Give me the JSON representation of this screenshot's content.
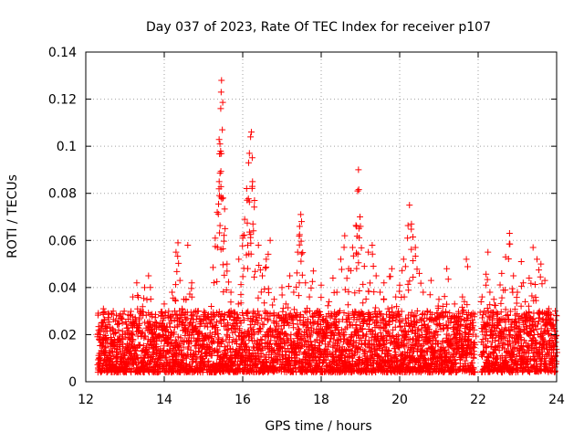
{
  "chart_data": {
    "type": "scatter",
    "title": "Day 037 of 2023, Rate Of TEC Index for receiver p107",
    "xlabel": "GPS time / hours",
    "ylabel": "ROTI / TECUs",
    "xlim": [
      12,
      24
    ],
    "ylim": [
      0,
      0.14
    ],
    "x_ticks": [
      12,
      14,
      16,
      18,
      20,
      22,
      24
    ],
    "x_tick_labels": [
      "12",
      "14",
      "16",
      "18",
      "20",
      "22",
      "24"
    ],
    "y_ticks": [
      0,
      0.02,
      0.04,
      0.06,
      0.08,
      0.1,
      0.12,
      0.14
    ],
    "y_tick_labels": [
      "0",
      "0.02",
      "0.04",
      "0.06",
      "0.08",
      "0.1",
      "0.12",
      "0.14"
    ],
    "grid": true,
    "marker": "+",
    "series": [
      {
        "name": "ROTI",
        "color": "#ff0000",
        "points": [
          [
            12.35,
            0.012
          ],
          [
            12.4,
            0.025
          ],
          [
            12.45,
            0.031
          ],
          [
            12.5,
            0.018
          ],
          [
            12.6,
            0.009
          ],
          [
            12.7,
            0.022
          ],
          [
            12.8,
            0.015
          ],
          [
            12.9,
            0.027
          ],
          [
            13.0,
            0.011
          ],
          [
            13.1,
            0.02
          ],
          [
            13.2,
            0.036
          ],
          [
            13.3,
            0.042
          ],
          [
            13.4,
            0.03
          ],
          [
            13.5,
            0.04
          ],
          [
            13.6,
            0.045
          ],
          [
            13.7,
            0.018
          ],
          [
            13.8,
            0.025
          ],
          [
            13.9,
            0.014
          ],
          [
            14.0,
            0.033
          ],
          [
            14.1,
            0.028
          ],
          [
            14.2,
            0.038
          ],
          [
            14.3,
            0.055
          ],
          [
            14.35,
            0.059
          ],
          [
            14.4,
            0.043
          ],
          [
            14.5,
            0.035
          ],
          [
            14.6,
            0.058
          ],
          [
            14.7,
            0.042
          ],
          [
            14.8,
            0.03
          ],
          [
            14.9,
            0.021
          ],
          [
            15.0,
            0.026
          ],
          [
            15.1,
            0.019
          ],
          [
            15.2,
            0.032
          ],
          [
            15.3,
            0.061
          ],
          [
            15.35,
            0.072
          ],
          [
            15.4,
            0.085
          ],
          [
            15.42,
            0.101
          ],
          [
            15.44,
            0.116
          ],
          [
            15.45,
            0.123
          ],
          [
            15.46,
            0.128
          ],
          [
            15.48,
            0.107
          ],
          [
            15.5,
            0.078
          ],
          [
            15.55,
            0.065
          ],
          [
            15.6,
            0.05
          ],
          [
            15.7,
            0.038
          ],
          [
            15.8,
            0.029
          ],
          [
            15.9,
            0.052
          ],
          [
            16.0,
            0.061
          ],
          [
            16.05,
            0.069
          ],
          [
            16.1,
            0.082
          ],
          [
            16.15,
            0.093
          ],
          [
            16.17,
            0.097
          ],
          [
            16.2,
            0.104
          ],
          [
            16.22,
            0.106
          ],
          [
            16.25,
            0.085
          ],
          [
            16.3,
            0.077
          ],
          [
            16.4,
            0.058
          ],
          [
            16.5,
            0.045
          ],
          [
            16.6,
            0.052
          ],
          [
            16.7,
            0.06
          ],
          [
            16.8,
            0.035
          ],
          [
            16.9,
            0.028
          ],
          [
            17.0,
            0.04
          ],
          [
            17.1,
            0.033
          ],
          [
            17.2,
            0.045
          ],
          [
            17.3,
            0.038
          ],
          [
            17.4,
            0.055
          ],
          [
            17.45,
            0.066
          ],
          [
            17.48,
            0.071
          ],
          [
            17.5,
            0.068
          ],
          [
            17.6,
            0.042
          ],
          [
            17.7,
            0.036
          ],
          [
            17.8,
            0.047
          ],
          [
            17.9,
            0.03
          ],
          [
            18.0,
            0.041
          ],
          [
            18.1,
            0.026
          ],
          [
            18.2,
            0.034
          ],
          [
            18.3,
            0.044
          ],
          [
            18.4,
            0.038
          ],
          [
            18.5,
            0.052
          ],
          [
            18.6,
            0.062
          ],
          [
            18.7,
            0.048
          ],
          [
            18.8,
            0.057
          ],
          [
            18.9,
            0.066
          ],
          [
            18.93,
            0.081
          ],
          [
            18.95,
            0.09
          ],
          [
            19.0,
            0.066
          ],
          [
            19.1,
            0.049
          ],
          [
            19.2,
            0.055
          ],
          [
            19.3,
            0.058
          ],
          [
            19.4,
            0.045
          ],
          [
            19.5,
            0.038
          ],
          [
            19.6,
            0.042
          ],
          [
            19.7,
            0.031
          ],
          [
            19.8,
            0.048
          ],
          [
            19.9,
            0.036
          ],
          [
            20.0,
            0.041
          ],
          [
            20.1,
            0.052
          ],
          [
            20.2,
            0.061
          ],
          [
            20.25,
            0.075
          ],
          [
            20.3,
            0.067
          ],
          [
            20.4,
            0.057
          ],
          [
            20.5,
            0.046
          ],
          [
            20.6,
            0.038
          ],
          [
            20.7,
            0.03
          ],
          [
            20.8,
            0.043
          ],
          [
            20.9,
            0.027
          ],
          [
            21.0,
            0.035
          ],
          [
            21.1,
            0.032
          ],
          [
            21.2,
            0.048
          ],
          [
            21.3,
            0.025
          ],
          [
            21.4,
            0.033
          ],
          [
            21.5,
            0.029
          ],
          [
            21.6,
            0.036
          ],
          [
            21.7,
            0.052
          ],
          [
            21.8,
            0.028
          ],
          [
            21.9,
            0.022
          ],
          [
            22.1,
            0.036
          ],
          [
            22.2,
            0.041
          ],
          [
            22.25,
            0.055
          ],
          [
            22.3,
            0.038
          ],
          [
            22.4,
            0.035
          ],
          [
            22.5,
            0.029
          ],
          [
            22.6,
            0.046
          ],
          [
            22.7,
            0.053
          ],
          [
            22.8,
            0.063
          ],
          [
            22.9,
            0.045
          ],
          [
            23.0,
            0.038
          ],
          [
            23.1,
            0.051
          ],
          [
            23.2,
            0.034
          ],
          [
            23.3,
            0.044
          ],
          [
            23.4,
            0.057
          ],
          [
            23.5,
            0.052
          ],
          [
            23.6,
            0.05
          ],
          [
            23.7,
            0.043
          ],
          [
            23.8,
            0.031
          ],
          [
            23.9,
            0.024
          ],
          [
            23.95,
            0.019
          ]
        ],
        "baseline_band": {
          "description": "dense cluster of points throughout the observation window",
          "x_range": [
            12.3,
            24.0
          ],
          "gap": [
            21.92,
            22.07
          ],
          "y_typical_range": [
            0.004,
            0.03
          ]
        }
      }
    ]
  }
}
